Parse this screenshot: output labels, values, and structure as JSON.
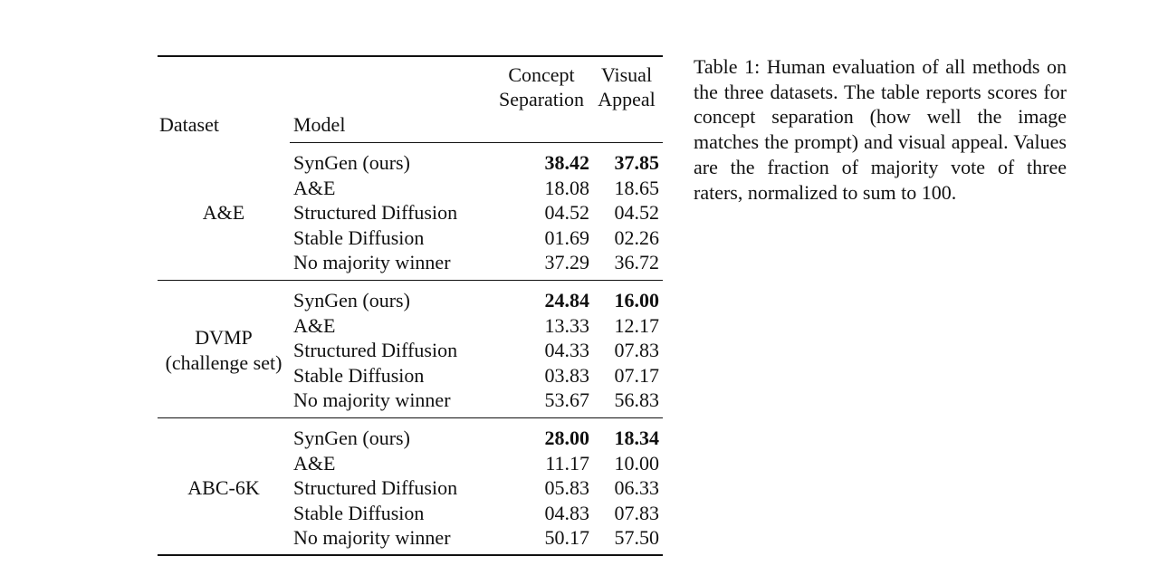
{
  "table": {
    "headers": {
      "dataset": "Dataset",
      "model": "Model",
      "metrics": [
        [
          "Concept",
          "Separation"
        ],
        [
          "Visual",
          "Appeal"
        ]
      ]
    },
    "groups": [
      {
        "dataset": [
          "A&E"
        ],
        "rows": [
          [
            "SynGen (ours)",
            "38.42",
            "37.85"
          ],
          [
            "A&E",
            "18.08",
            "18.65"
          ],
          [
            "Structured Diffusion",
            "04.52",
            "04.52"
          ],
          [
            "Stable Diffusion",
            "01.69",
            "02.26"
          ],
          [
            "No majority winner",
            "37.29",
            "36.72"
          ]
        ]
      },
      {
        "dataset": [
          "DVMP",
          "(challenge set)"
        ],
        "rows": [
          [
            "SynGen (ours)",
            "24.84",
            "16.00"
          ],
          [
            "A&E",
            "13.33",
            "12.17"
          ],
          [
            "Structured Diffusion",
            "04.33",
            "07.83"
          ],
          [
            "Stable Diffusion",
            "03.83",
            "07.17"
          ],
          [
            "No majority winner",
            "53.67",
            "56.83"
          ]
        ]
      },
      {
        "dataset": [
          "ABC-6K"
        ],
        "rows": [
          [
            "SynGen (ours)",
            "28.00",
            "18.34"
          ],
          [
            "A&E",
            "11.17",
            "10.00"
          ],
          [
            "Structured Diffusion",
            "05.83",
            "06.33"
          ],
          [
            "Stable Diffusion",
            "04.83",
            "07.83"
          ],
          [
            "No majority winner",
            "50.17",
            "57.50"
          ]
        ]
      }
    ]
  },
  "caption": "Table 1: Human evaluation of all methods on the three datasets. The table reports scores for concept separation (how well the image matches the prompt) and visual appeal. Values are the fraction of majority vote of three raters, normalized to sum to 100."
}
